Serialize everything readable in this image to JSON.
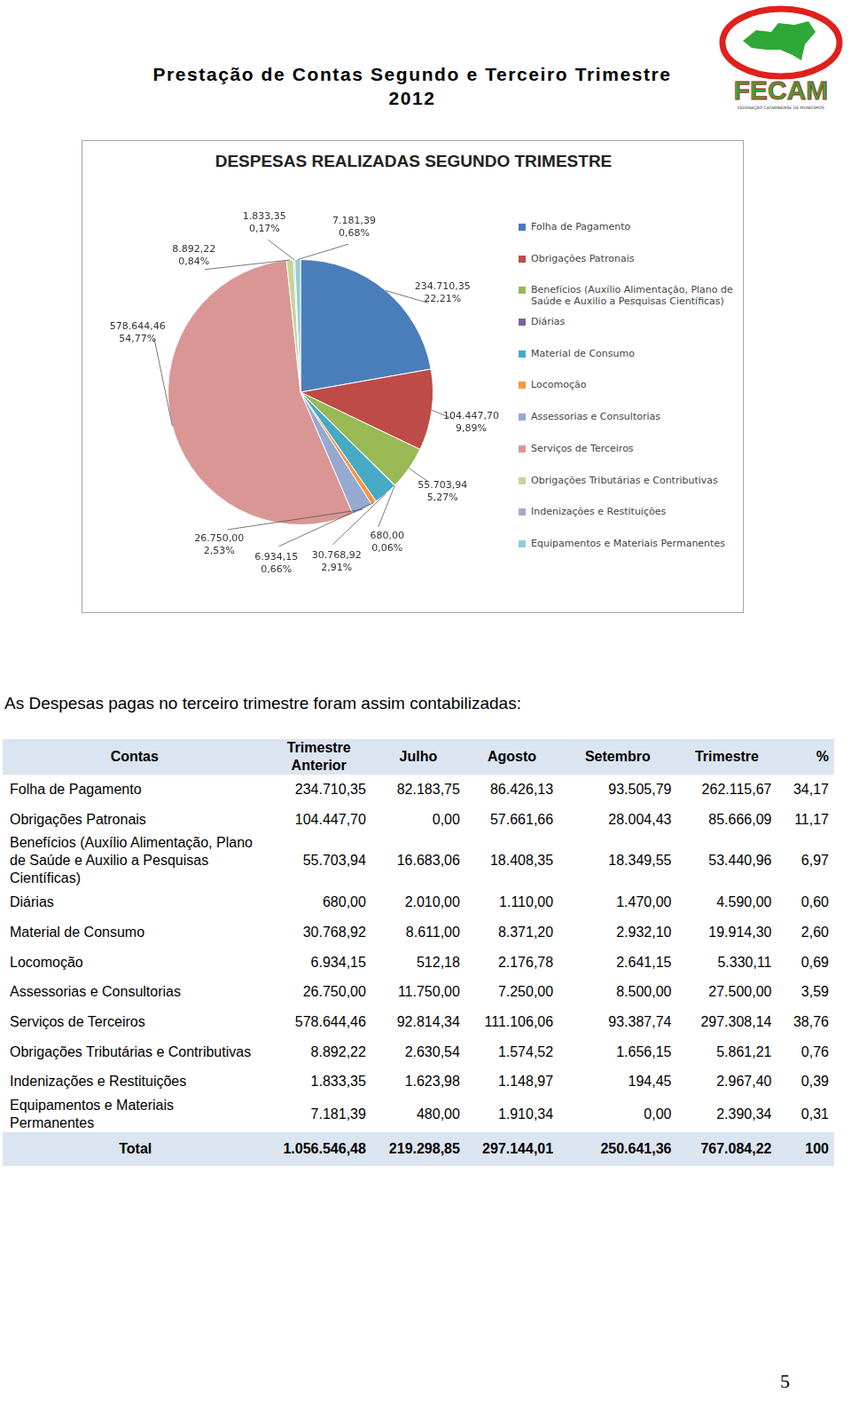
{
  "header": {
    "title_lines": [
      "Prestação de Contas Segundo e Terceiro Trimestre",
      "2012"
    ],
    "logo": "FECAM",
    "logo_subtitle": "FEDERAÇÃO CATARINENSE DE MUNICÍPIOS"
  },
  "chart_data": {
    "type": "pie",
    "title": "DESPESAS REALIZADAS SEGUNDO TRIMESTRE",
    "categories": [
      "Folha de Pagamento",
      "Obrigações Patronais",
      "Benefícios (Auxílio Alimentação, Plano de Saúde e Auxilio a Pesquisas Científicas)",
      "Diárias",
      "Material de Consumo",
      "Locomoção",
      "Assessorias e Consultorias",
      "Serviços de Terceiros",
      "Obrigações Tributárias e Contributivas",
      "Indenizações e Restituições",
      "Equipamentos e Materiais Permanentes"
    ],
    "values": [
      234710.35,
      104447.7,
      55703.94,
      680.0,
      30768.92,
      6934.15,
      26750.0,
      578644.46,
      8892.22,
      1833.35,
      7181.39
    ],
    "value_labels": [
      "234.710,35",
      "104.447,70",
      "55.703,94",
      "680,00",
      "30.768,92",
      "6.934,15",
      "26.750,00",
      "578.644,46",
      "8.892,22",
      "1.833,35",
      "7.181,39"
    ],
    "percentages": [
      22.21,
      9.89,
      5.27,
      0.06,
      2.91,
      0.66,
      2.53,
      54.77,
      0.84,
      0.17,
      0.68
    ],
    "percentage_labels": [
      "22,21%",
      "9,89%",
      "5,27%",
      "0,06%",
      "2,91%",
      "0,66%",
      "2,53%",
      "54,77%",
      "0,84%",
      "0,17%",
      "0,68%"
    ],
    "colors": [
      "#4a7ebb",
      "#be4b48",
      "#98b954",
      "#7d60a0",
      "#46aac4",
      "#f79646",
      "#95a9d1",
      "#d99694",
      "#c3d69b",
      "#b3a2c7",
      "#93cddd"
    ],
    "data_labels": true,
    "legend": "right"
  },
  "paragraph": "As Despesas pagas no terceiro trimestre foram assim contabilizadas:",
  "table": {
    "columns": [
      "Contas",
      "Trimestre Anterior",
      "Julho",
      "Agosto",
      "Setembro",
      "Trimestre",
      "%"
    ],
    "rows": [
      [
        "Folha de Pagamento",
        "234.710,35",
        "82.183,75",
        "86.426,13",
        "93.505,79",
        "262.115,67",
        "34,17"
      ],
      [
        "Obrigações Patronais",
        "104.447,70",
        "0,00",
        "57.661,66",
        "28.004,43",
        "85.666,09",
        "11,17"
      ],
      [
        "Benefícios (Auxílio Alimentação, Plano de Saúde e Auxilio a Pesquisas Científicas)",
        "55.703,94",
        "16.683,06",
        "18.408,35",
        "18.349,55",
        "53.440,96",
        "6,97"
      ],
      [
        "Diárias",
        "680,00",
        "2.010,00",
        "1.110,00",
        "1.470,00",
        "4.590,00",
        "0,60"
      ],
      [
        "Material de Consumo",
        "30.768,92",
        "8.611,00",
        "8.371,20",
        "2.932,10",
        "19.914,30",
        "2,60"
      ],
      [
        "Locomoção",
        "6.934,15",
        "512,18",
        "2.176,78",
        "2.641,15",
        "5.330,11",
        "0,69"
      ],
      [
        "Assessorias e Consultorias",
        "26.750,00",
        "11.750,00",
        "7.250,00",
        "8.500,00",
        "27.500,00",
        "3,59"
      ],
      [
        "Serviços de Terceiros",
        "578.644,46",
        "92.814,34",
        "111.106,06",
        "93.387,74",
        "297.308,14",
        "38,76"
      ],
      [
        "Obrigações Tributárias e Contributivas",
        "8.892,22",
        "2.630,54",
        "1.574,52",
        "1.656,15",
        "5.861,21",
        "0,76"
      ],
      [
        "Indenizações e Restituições",
        "1.833,35",
        "1.623,98",
        "1.148,97",
        "194,45",
        "2.967,40",
        "0,39"
      ],
      [
        "Equipamentos e Materiais Permanentes",
        "7.181,39",
        "480,00",
        "1.910,34",
        "0,00",
        "2.390,34",
        "0,31"
      ]
    ],
    "total": [
      "Total",
      "1.056.546,48",
      "219.298,85",
      "297.144,01",
      "250.641,36",
      "767.084,22",
      "100"
    ]
  },
  "page_number": "5"
}
